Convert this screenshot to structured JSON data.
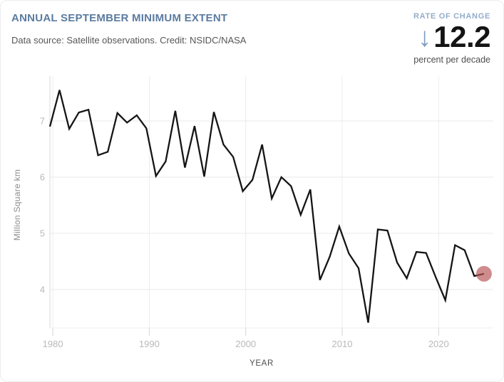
{
  "header": {
    "title": "ANNUAL SEPTEMBER MINIMUM EXTENT",
    "subtitle": "Data source: Satellite observations. Credit: NSIDC/NASA"
  },
  "rate_of_change": {
    "label": "RATE OF CHANGE",
    "arrow_icon": "↓",
    "value": "12.2",
    "unit": "percent per decade"
  },
  "chart_data": {
    "type": "line",
    "title": "Annual September Minimum Extent",
    "xlabel": "YEAR",
    "ylabel": "Million Square km",
    "x": [
      1979,
      1980,
      1981,
      1982,
      1983,
      1984,
      1985,
      1986,
      1987,
      1988,
      1989,
      1990,
      1991,
      1992,
      1993,
      1994,
      1995,
      1996,
      1997,
      1998,
      1999,
      2000,
      2001,
      2002,
      2003,
      2004,
      2005,
      2006,
      2007,
      2008,
      2009,
      2010,
      2011,
      2012,
      2013,
      2014,
      2015,
      2016,
      2017,
      2018,
      2019,
      2020,
      2021,
      2022,
      2023,
      2024
    ],
    "values": [
      6.9,
      7.55,
      6.86,
      7.15,
      7.2,
      6.39,
      6.45,
      7.14,
      6.97,
      7.1,
      6.87,
      6.02,
      6.28,
      7.18,
      6.17,
      6.91,
      6.01,
      7.16,
      6.58,
      6.36,
      5.75,
      5.95,
      6.58,
      5.62,
      6.0,
      5.84,
      5.33,
      5.78,
      4.17,
      4.58,
      5.12,
      4.64,
      4.38,
      3.41,
      5.07,
      5.05,
      4.48,
      4.2,
      4.67,
      4.65,
      4.22,
      3.81,
      4.79,
      4.7,
      4.24,
      4.28
    ],
    "x_ticks": [
      1980,
      1990,
      2000,
      2010,
      2020
    ],
    "y_ticks": [
      7,
      6,
      5,
      4
    ],
    "xlim": [
      1979.6,
      2025.4
    ],
    "ylim": [
      3.3,
      7.8
    ],
    "grid": true,
    "legend": "none",
    "line_color": "#151515",
    "last_point": {
      "year": 2024,
      "value": 4.28,
      "marker_color": "#b85555"
    }
  },
  "colors": {
    "title_accent": "#5b7ba0",
    "rate_label": "#94accb",
    "arrow": "#7e9cbc",
    "rate_value": "#141414",
    "line": "#151515",
    "latest_marker": "#b85555",
    "gridline": "#ededed",
    "tick_label": "#b9b9b9"
  }
}
